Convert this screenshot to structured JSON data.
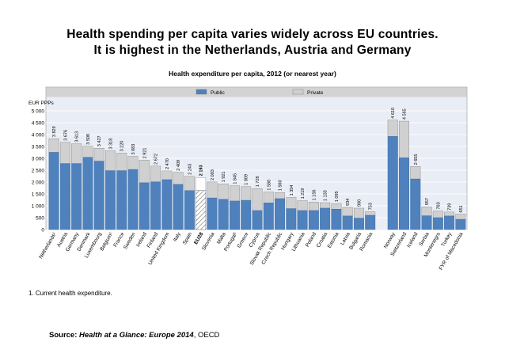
{
  "headline": {
    "line1": "Health spending per capita varies widely across EU countries.",
    "line2": "It is highest in the Netherlands, Austria and Germany"
  },
  "chart_data": {
    "type": "bar",
    "stacked": true,
    "title": "Health expenditure per capita, 2012 (or nearest year)",
    "ylabel": "EUR PPPs",
    "ylim": [
      0,
      5000
    ],
    "yticks": [
      "0",
      "500",
      "1 000",
      "1 500",
      "2 000",
      "2 500",
      "3 000",
      "3 500",
      "4 000",
      "4 500",
      "5 000"
    ],
    "legend": {
      "position": "top",
      "entries": [
        "Public",
        "Private"
      ]
    },
    "colors": {
      "public": "#4f81bd",
      "private": "#d0d0d0",
      "eu_total": "#ffffff"
    },
    "categories": [
      "Netherlands¹",
      "Austria",
      "Germany",
      "Denmark",
      "Luxembourg",
      "Belgium¹",
      "France",
      "Sweden",
      "Ireland",
      "Finland",
      "United Kingdom",
      "Italy",
      "Spain",
      "EU28",
      "Slovenia",
      "Malta",
      "Portugal¹",
      "Greece",
      "Cyprus",
      "Slovak Republic",
      "Czech Republic",
      "Hungary",
      "Lithuania",
      "Poland",
      "Croatia",
      "Estonia",
      "Latvia",
      "Bulgaria",
      "Romania",
      "",
      "Norway",
      "Switzerland",
      "Iceland",
      "Serbia",
      "Montenegro",
      "Turkey",
      "FYR of Macedonia"
    ],
    "totals": [
      "3 829",
      "3 676",
      "3 613",
      "3 508",
      "3 427",
      "3 318",
      "3 220",
      "3 083",
      "2 921",
      "2 672",
      "2 470",
      "2 409",
      "2 243",
      "2 193",
      "2 003",
      "1 921",
      "1 845",
      "1 809",
      "1 728",
      "1 580",
      "1 560",
      "1 354",
      "1 219",
      "1 156",
      "1 133",
      "1 095",
      "934",
      "900",
      "753",
      "",
      "4 610",
      "4 565",
      "2 655",
      "957",
      "783",
      "739",
      "651"
    ],
    "series": [
      {
        "name": "Public",
        "values": [
          3250,
          2780,
          2780,
          3040,
          2880,
          2480,
          2480,
          2530,
          1970,
          2010,
          2100,
          1900,
          1640,
          1640,
          1330,
          1270,
          1200,
          1230,
          800,
          1120,
          1300,
          880,
          800,
          800,
          900,
          860,
          570,
          480,
          600,
          null,
          3920,
          3020,
          2130,
          580,
          500,
          570,
          430
        ]
      },
      {
        "name": "Private",
        "values": [
          579,
          896,
          833,
          468,
          547,
          838,
          740,
          553,
          951,
          662,
          370,
          509,
          603,
          553,
          673,
          651,
          645,
          579,
          928,
          460,
          260,
          474,
          419,
          356,
          233,
          235,
          364,
          420,
          153,
          null,
          690,
          1545,
          525,
          377,
          283,
          169,
          221
        ]
      }
    ]
  },
  "footnote": "1. Current health expenditure.",
  "source": {
    "label": "Source:",
    "text": "Health at a Glance: Europe 2014",
    "suffix": ", OECD"
  }
}
